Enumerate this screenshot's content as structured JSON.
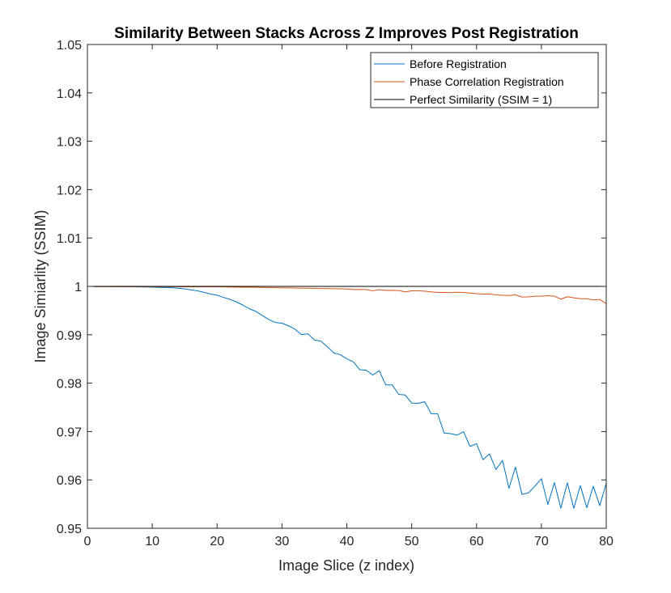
{
  "chart_data": {
    "type": "line",
    "title": "Similarity Between Stacks Across Z Improves Post Registration",
    "xlabel": "Image Slice (z index)",
    "ylabel": "Image Simiarlity (SSIM)",
    "xlim": [
      0,
      80
    ],
    "ylim": [
      0.95,
      1.05
    ],
    "xticks": [
      0,
      10,
      20,
      30,
      40,
      50,
      60,
      70,
      80
    ],
    "yticks": [
      0.95,
      0.96,
      0.97,
      0.98,
      0.99,
      1,
      1.01,
      1.02,
      1.03,
      1.04,
      1.05
    ],
    "xtick_labels": [
      "0",
      "10",
      "20",
      "30",
      "40",
      "50",
      "60",
      "70",
      "80"
    ],
    "ytick_labels": [
      "0.95",
      "0.96",
      "0.97",
      "0.98",
      "0.99",
      "1",
      "1.01",
      "1.02",
      "1.03",
      "1.04",
      "1.05"
    ],
    "grid": false,
    "legend_position": "top-right",
    "series": [
      {
        "name": "Before Registration",
        "color": "#0072BD",
        "x": [
          1,
          2,
          3,
          4,
          5,
          6,
          7,
          8,
          9,
          10,
          11,
          12,
          13,
          14,
          15,
          16,
          17,
          18,
          19,
          20,
          21,
          22,
          23,
          24,
          25,
          26,
          27,
          28,
          29,
          30,
          31,
          32,
          33,
          34,
          35,
          36,
          37,
          38,
          39,
          40,
          41,
          42,
          43,
          44,
          45,
          46,
          47,
          48,
          49,
          50,
          51,
          52,
          53,
          54,
          55,
          56,
          57,
          58,
          59,
          60,
          61,
          62,
          63,
          64,
          65,
          66,
          67,
          68,
          69,
          70,
          71,
          72,
          73,
          74,
          75,
          76,
          77,
          78,
          79,
          80
        ],
        "y": [
          1.0,
          0.99998,
          0.99997,
          0.99996,
          0.99995,
          0.99993,
          0.99992,
          0.9999,
          0.99988,
          0.99985,
          0.9998,
          0.99977,
          0.99972,
          0.99962,
          0.99949,
          0.99927,
          0.99907,
          0.99877,
          0.99841,
          0.99818,
          0.99771,
          0.99732,
          0.99676,
          0.99611,
          0.99536,
          0.99482,
          0.99395,
          0.99314,
          0.99253,
          0.99239,
          0.99185,
          0.99115,
          0.99002,
          0.99019,
          0.98893,
          0.98869,
          0.98751,
          0.98624,
          0.98588,
          0.98503,
          0.98441,
          0.98277,
          0.98267,
          0.98167,
          0.98258,
          0.97963,
          0.97963,
          0.97767,
          0.97754,
          0.97588,
          0.97581,
          0.97617,
          0.97368,
          0.97368,
          0.96967,
          0.96957,
          0.96927,
          0.96995,
          0.96691,
          0.96749,
          0.96418,
          0.96536,
          0.96214,
          0.96404,
          0.95825,
          0.96266,
          0.95701,
          0.95731,
          0.95872,
          0.96026,
          0.95492,
          0.95944,
          0.95415,
          0.95941,
          0.95411,
          0.95883,
          0.95424,
          0.95869,
          0.95469,
          0.95932
        ]
      },
      {
        "name": "Phase Correlation Registration",
        "color": "#D95319",
        "x": [
          1,
          2,
          3,
          4,
          5,
          6,
          7,
          8,
          9,
          10,
          11,
          12,
          13,
          14,
          15,
          16,
          17,
          18,
          19,
          20,
          21,
          22,
          23,
          24,
          25,
          26,
          27,
          28,
          29,
          30,
          31,
          32,
          33,
          34,
          35,
          36,
          37,
          38,
          39,
          40,
          41,
          42,
          43,
          44,
          45,
          46,
          47,
          48,
          49,
          50,
          51,
          52,
          53,
          54,
          55,
          56,
          57,
          58,
          59,
          60,
          61,
          62,
          63,
          64,
          65,
          66,
          67,
          68,
          69,
          70,
          71,
          72,
          73,
          74,
          75,
          76,
          77,
          78,
          79,
          80
        ],
        "y": [
          0.99993,
          0.99995,
          0.99995,
          0.99994,
          0.99994,
          0.99994,
          0.99993,
          0.99993,
          0.99993,
          0.99993,
          0.99993,
          0.99993,
          0.99993,
          0.99993,
          0.99992,
          0.99992,
          0.99992,
          0.99992,
          0.99991,
          0.99991,
          0.99989,
          0.99988,
          0.99986,
          0.99984,
          0.99983,
          0.99981,
          0.99978,
          0.99975,
          0.99973,
          0.99971,
          0.99968,
          0.99966,
          0.99963,
          0.99962,
          0.9996,
          0.99957,
          0.99954,
          0.99951,
          0.99949,
          0.99946,
          0.99936,
          0.99938,
          0.99933,
          0.99909,
          0.99934,
          0.99916,
          0.99918,
          0.99914,
          0.99887,
          0.99908,
          0.99907,
          0.99901,
          0.99888,
          0.99874,
          0.99877,
          0.99871,
          0.99879,
          0.99875,
          0.99863,
          0.99849,
          0.99842,
          0.99843,
          0.99825,
          0.99817,
          0.99812,
          0.99825,
          0.99781,
          0.99783,
          0.99797,
          0.99797,
          0.99807,
          0.99798,
          0.99737,
          0.99787,
          0.99763,
          0.99747,
          0.99745,
          0.9972,
          0.99731,
          0.99642
        ]
      },
      {
        "name": "Perfect Similarity (SSIM = 1)",
        "color": "#000000",
        "x": [
          0,
          80
        ],
        "y": [
          1,
          1
        ]
      }
    ]
  }
}
